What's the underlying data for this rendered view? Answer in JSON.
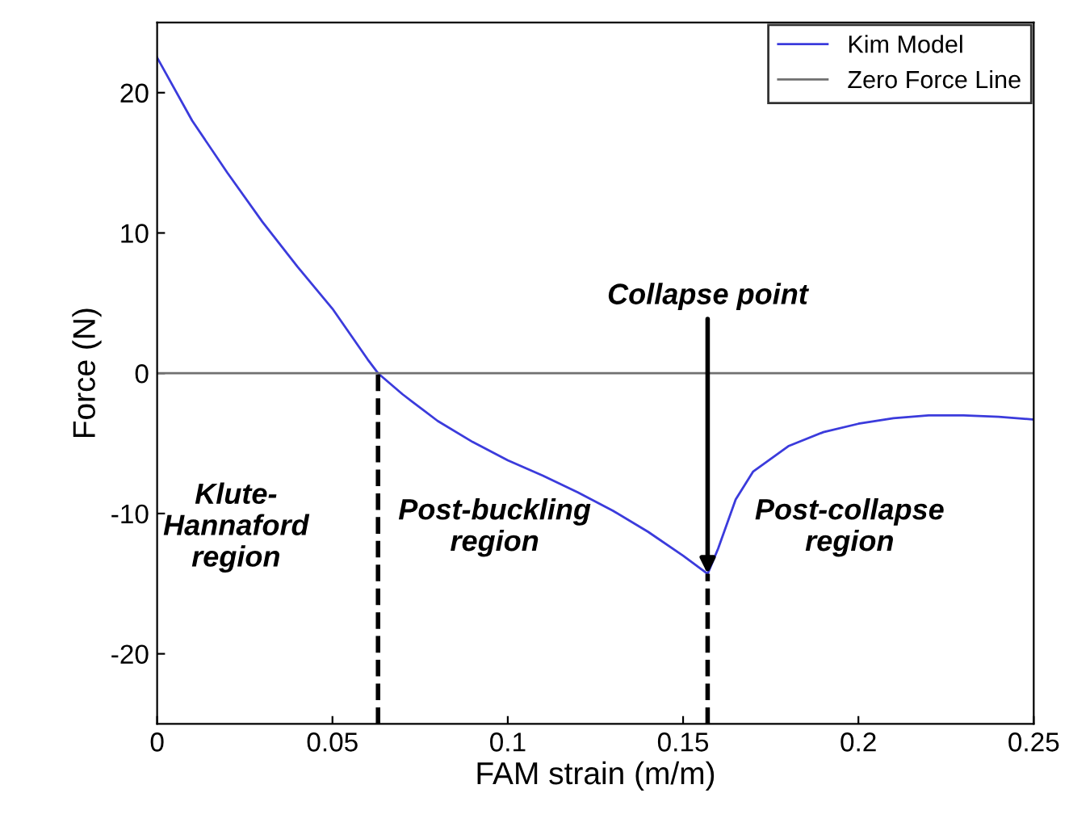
{
  "chart_data": {
    "type": "line",
    "xlabel": "FAM strain (m/m)",
    "ylabel": "Force (N)",
    "series": [
      {
        "name": "Kim Model",
        "color": "#3b3bdc",
        "x": [
          0,
          0.01,
          0.02,
          0.03,
          0.04,
          0.05,
          0.06,
          0.063,
          0.07,
          0.08,
          0.09,
          0.1,
          0.11,
          0.12,
          0.13,
          0.14,
          0.15,
          0.157,
          0.16,
          0.165,
          0.17,
          0.18,
          0.19,
          0.2,
          0.21,
          0.22,
          0.23,
          0.24,
          0.25
        ],
        "values": [
          22.5,
          18.0,
          14.3,
          10.8,
          7.6,
          4.6,
          1.0,
          0,
          -1.5,
          -3.4,
          -4.9,
          -6.2,
          -7.3,
          -8.5,
          -9.8,
          -11.3,
          -13.0,
          -14.3,
          -12.5,
          -9.0,
          -7.0,
          -5.2,
          -4.2,
          -3.6,
          -3.2,
          -3.0,
          -3.0,
          -3.1,
          -3.3
        ]
      },
      {
        "name": "Zero Force Line",
        "color": "#707070",
        "x": [
          0,
          0.25
        ],
        "values": [
          0,
          0
        ]
      }
    ],
    "ref_lines": [
      {
        "axis": "x",
        "value": 0.063,
        "color": "#000000",
        "line_style": "dashed"
      },
      {
        "axis": "x",
        "value": 0.157,
        "color": "#000000",
        "line_style": "dashed"
      }
    ],
    "annotations": [
      {
        "text": "Collapse point",
        "x": 0.157,
        "y": -14.3
      },
      "Klute-\nHannaford\nregion",
      "Post-buckling\nregion",
      "Post-collapse\nregion"
    ],
    "xlim": [
      0,
      0.25
    ],
    "ylim": [
      -25,
      25
    ],
    "xticks": [
      0,
      0.05,
      0.1,
      0.15,
      0.2,
      0.25
    ],
    "yticks": [
      -20,
      -10,
      0,
      10,
      20
    ],
    "grid": false,
    "legend": "top right",
    "line_style": "solid",
    "marker": "none"
  }
}
